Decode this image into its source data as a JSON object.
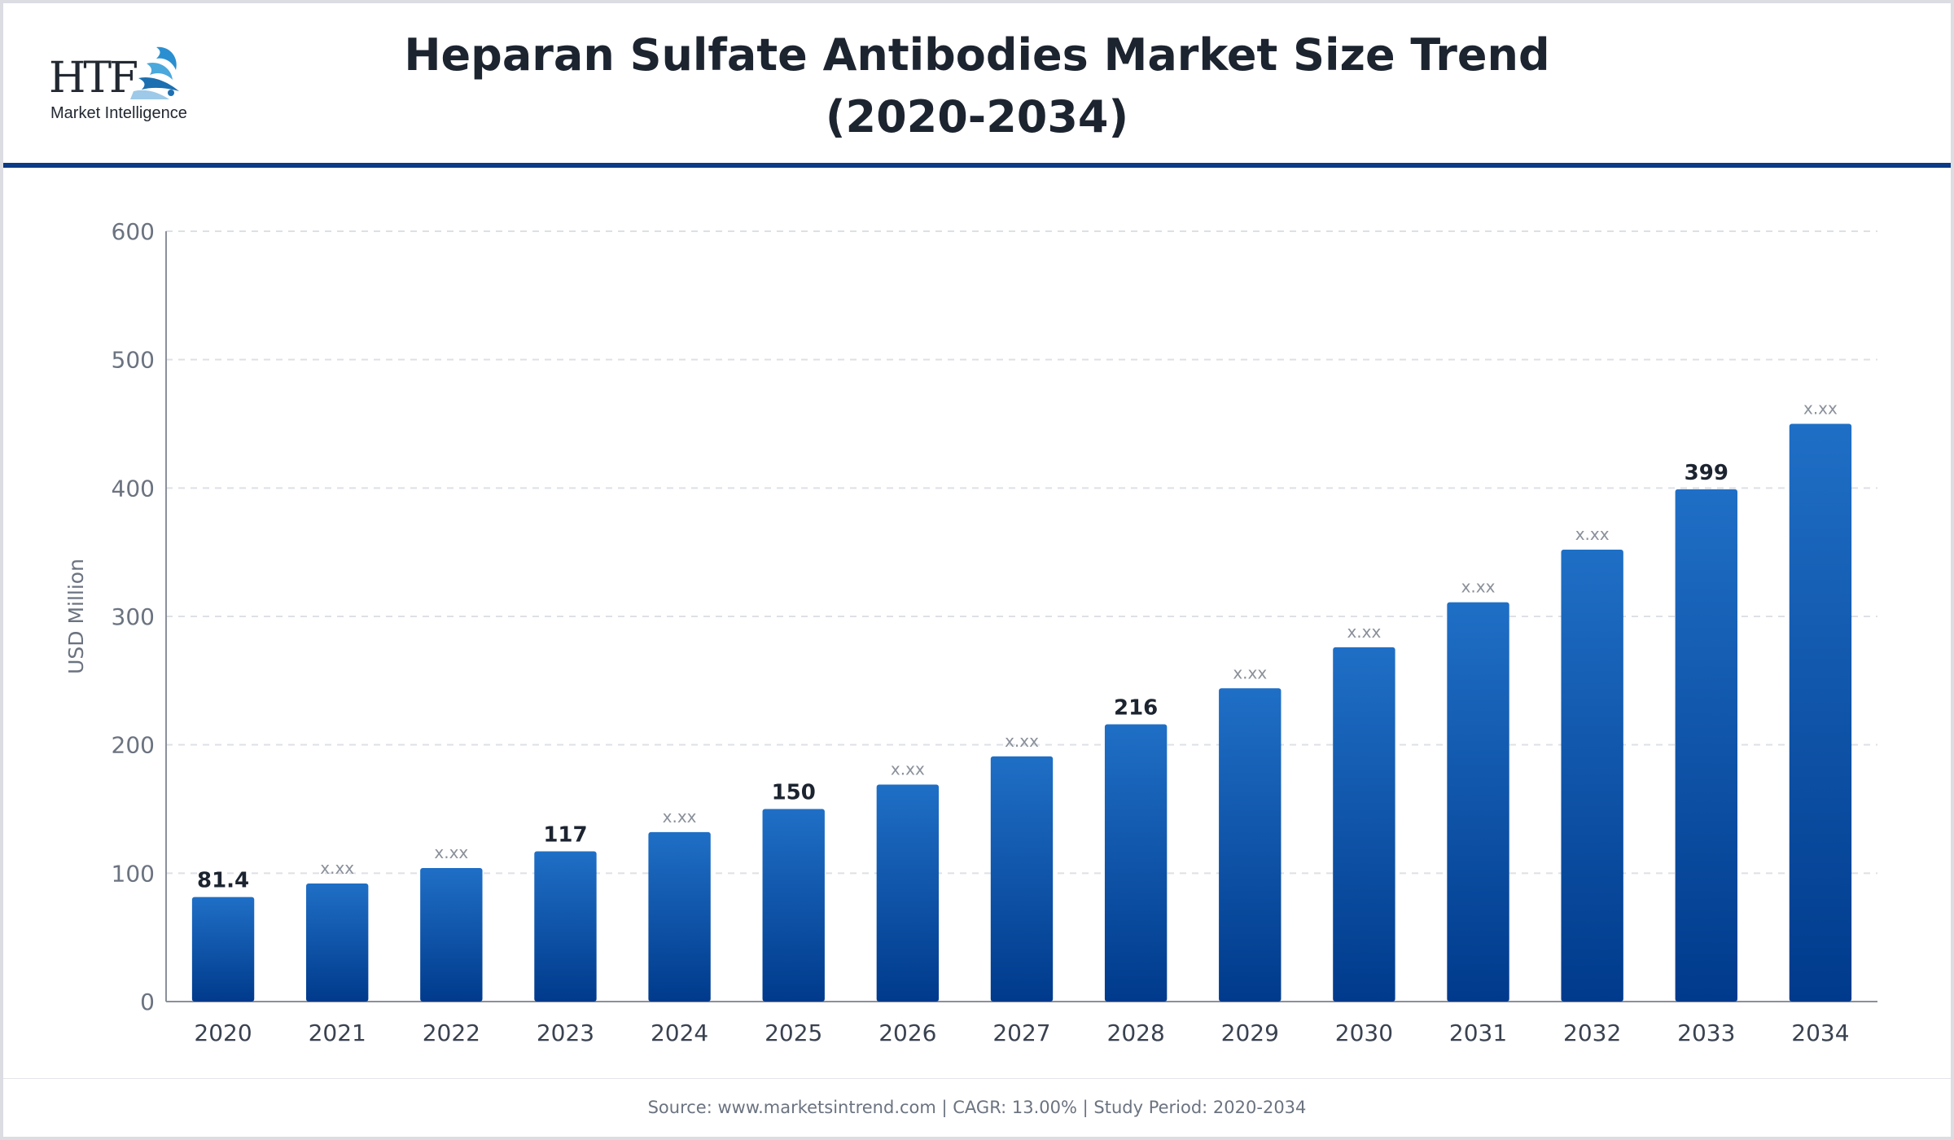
{
  "header": {
    "logo_letters": "HTF",
    "logo_subtitle": "Market Intelligence",
    "title_line1": "Heparan Sulfate Antibodies Market Size Trend",
    "title_line2": "(2020-2034)"
  },
  "footer": {
    "text": "Source: www.marketsintrend.com  |  CAGR: 13.00%  |  Study Period: 2020-2034"
  },
  "colors": {
    "bar_top": "#1f6fc6",
    "bar_bottom": "#003a8c",
    "accent_rule": "#0b3a86",
    "placeholder_label": "#8a909a",
    "value_label": "#1c2430"
  },
  "chart_data": {
    "type": "bar",
    "title": "Heparan Sulfate Antibodies Market Size Trend (2020-2034)",
    "xlabel": "",
    "ylabel": "USD Million",
    "ylim": [
      0,
      600
    ],
    "yticks": [
      0,
      100,
      200,
      300,
      400,
      500,
      600
    ],
    "grid": true,
    "legend": "none",
    "categories": [
      "2020",
      "2021",
      "2022",
      "2023",
      "2024",
      "2025",
      "2026",
      "2027",
      "2028",
      "2029",
      "2030",
      "2031",
      "2032",
      "2033",
      "2034"
    ],
    "values": [
      81.4,
      92,
      104,
      117,
      132,
      150,
      169,
      191,
      216,
      244,
      276,
      311,
      352,
      399,
      450
    ],
    "data_labels": [
      "81.4",
      "x.xx",
      "x.xx",
      "117",
      "x.xx",
      "150",
      "x.xx",
      "x.xx",
      "216",
      "x.xx",
      "x.xx",
      "x.xx",
      "x.xx",
      "399",
      "x.xx"
    ]
  }
}
